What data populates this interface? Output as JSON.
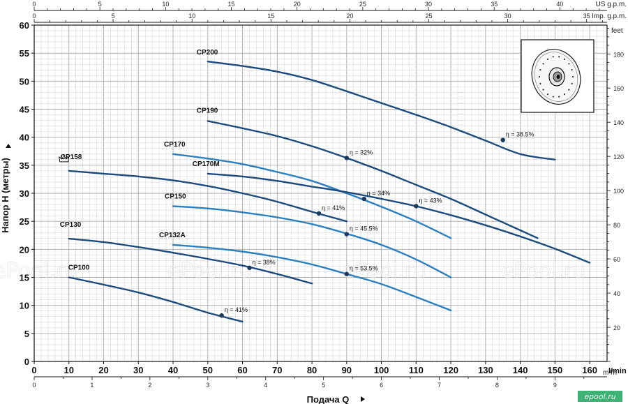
{
  "chart_data": {
    "type": "line",
    "xlabel": "Подача Q",
    "ylabel": "Напор H (метры)",
    "x_unit": "l/min",
    "xlim": [
      0,
      165
    ],
    "ylim": [
      0,
      60
    ],
    "x_ticks": [
      0,
      10,
      20,
      30,
      40,
      50,
      60,
      70,
      80,
      90,
      100,
      110,
      120,
      130,
      140,
      150,
      160
    ],
    "y_ticks": [
      0,
      5,
      10,
      15,
      20,
      25,
      30,
      35,
      40,
      45,
      50,
      55,
      60
    ],
    "grid": true,
    "secondary_axes": {
      "us_gpm": {
        "label": "US g.p.m.",
        "ticks": [
          0,
          5,
          10,
          15,
          20,
          25,
          30,
          35,
          40
        ]
      },
      "imp_gpm": {
        "label": "Imp. g.p.m.",
        "ticks": [
          0,
          5,
          10,
          15,
          20,
          25,
          30,
          35
        ]
      },
      "feet": {
        "label": "feet",
        "ticks": [
          20,
          40,
          60,
          80,
          100,
          120,
          140,
          160,
          180
        ]
      },
      "m3h": {
        "label": "m³/h",
        "ticks": [
          0,
          1,
          2,
          3,
          4,
          5,
          6,
          7,
          8,
          9
        ]
      }
    },
    "series": [
      {
        "name": "CP100",
        "color": "#1b4a7d",
        "points": [
          [
            10,
            15
          ],
          [
            20,
            13.7
          ],
          [
            30,
            12.3
          ],
          [
            40,
            10.6
          ],
          [
            50,
            8.7
          ],
          [
            60,
            7.1
          ]
        ],
        "eff": {
          "text": "η = 41%",
          "x": 54,
          "y": 8.2
        }
      },
      {
        "name": "CP130",
        "color": "#1b4a7d",
        "points": [
          [
            10,
            21.9
          ],
          [
            20,
            21.3
          ],
          [
            30,
            20.4
          ],
          [
            40,
            19.4
          ],
          [
            50,
            18.3
          ],
          [
            60,
            17.1
          ],
          [
            70,
            15.6
          ],
          [
            80,
            13.9
          ]
        ],
        "eff": {
          "text": "η = 38%",
          "x": 62,
          "y": 16.7
        }
      },
      {
        "name": "CP132A",
        "color": "#2b7fbf",
        "points": [
          [
            40,
            20.8
          ],
          [
            50,
            20.3
          ],
          [
            60,
            19.6
          ],
          [
            70,
            18.6
          ],
          [
            80,
            17.3
          ],
          [
            90,
            15.6
          ],
          [
            100,
            13.8
          ],
          [
            110,
            11.5
          ],
          [
            120,
            9.1
          ]
        ],
        "eff": {
          "text": "η = 53.5%",
          "x": 90,
          "y": 15.6
        }
      },
      {
        "name": "CP150",
        "color": "#2b7fbf",
        "points": [
          [
            40,
            27.7
          ],
          [
            50,
            27.3
          ],
          [
            60,
            26.6
          ],
          [
            70,
            25.7
          ],
          [
            80,
            24.5
          ],
          [
            90,
            22.8
          ],
          [
            100,
            20.8
          ],
          [
            110,
            18.2
          ],
          [
            120,
            15
          ]
        ],
        "eff": {
          "text": "η = 45.5%",
          "x": 90,
          "y": 22.7
        }
      },
      {
        "name": "CP158",
        "color": "#1b4a7d",
        "points": [
          [
            10,
            34
          ],
          [
            20,
            33.5
          ],
          [
            30,
            33
          ],
          [
            40,
            32.3
          ],
          [
            50,
            31.3
          ],
          [
            60,
            30
          ],
          [
            70,
            28.5
          ],
          [
            80,
            26.7
          ],
          [
            90,
            25
          ]
        ],
        "eff": {
          "text": "η = 41%",
          "x": 82,
          "y": 26.4
        }
      },
      {
        "name": "CP170",
        "color": "#2b7fbf",
        "points": [
          [
            40,
            37
          ],
          [
            50,
            36.2
          ],
          [
            60,
            35.2
          ],
          [
            70,
            33.8
          ],
          [
            80,
            32.2
          ],
          [
            90,
            30
          ],
          [
            100,
            27.6
          ],
          [
            110,
            25
          ],
          [
            120,
            22
          ]
        ],
        "eff": {
          "text": "η = 34%",
          "x": 95,
          "y": 29
        }
      },
      {
        "name": "CP170M",
        "color": "#1b4a7d",
        "points": [
          [
            50,
            33.5
          ],
          [
            60,
            33
          ],
          [
            70,
            32.2
          ],
          [
            80,
            31.2
          ],
          [
            90,
            30.2
          ],
          [
            100,
            29
          ],
          [
            110,
            27.7
          ],
          [
            120,
            26.1
          ],
          [
            130,
            24.3
          ],
          [
            140,
            22.3
          ],
          [
            150,
            20.1
          ],
          [
            160,
            17.6
          ]
        ],
        "eff": {
          "text": "η = 43%",
          "x": 110,
          "y": 27.7
        }
      },
      {
        "name": "CP190",
        "color": "#1b4a7d",
        "points": [
          [
            50,
            42.9
          ],
          [
            60,
            41.6
          ],
          [
            70,
            40.2
          ],
          [
            80,
            38.4
          ],
          [
            90,
            36.3
          ],
          [
            100,
            34
          ],
          [
            110,
            31.5
          ],
          [
            120,
            29
          ],
          [
            130,
            26.2
          ],
          [
            140,
            23.4
          ],
          [
            145,
            22
          ]
        ],
        "eff": {
          "text": "η = 32%",
          "x": 90,
          "y": 36.3
        }
      },
      {
        "name": "CP200",
        "color": "#1b4a7d",
        "points": [
          [
            50,
            53.5
          ],
          [
            60,
            52.7
          ],
          [
            70,
            51.7
          ],
          [
            80,
            50.2
          ],
          [
            90,
            48.2
          ],
          [
            100,
            46.1
          ],
          [
            110,
            44
          ],
          [
            120,
            41.8
          ],
          [
            130,
            39.4
          ],
          [
            140,
            37
          ],
          [
            150,
            36
          ]
        ],
        "eff": {
          "text": "η = 38.5%",
          "x": 135,
          "y": 39.5
        }
      }
    ],
    "watermark": "ePool.ru",
    "logo": "epool.ru"
  }
}
